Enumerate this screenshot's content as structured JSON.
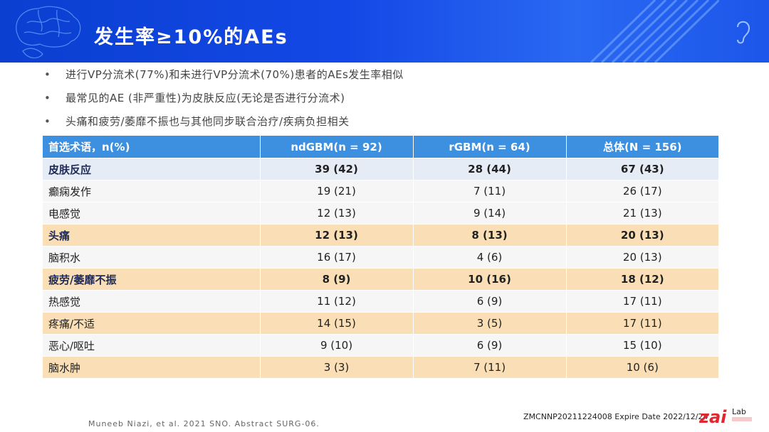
{
  "header": {
    "title": "发生率≥10%的AEs"
  },
  "bullets": [
    "进行VP分流术(77%)和未进行VP分流术(70%)患者的AEs发生率相似",
    "最常见的AE (非严重性)为皮肤反应(无论是否进行分流术)",
    "头痛和疲劳/萎靡不振也与其他同步联合治疗/疾病负担相关"
  ],
  "table": {
    "headers": [
      "首选术语，n(%)",
      "ndGBM(n = 92)",
      "rGBM(n = 64)",
      "总体(N = 156)"
    ],
    "rows": [
      {
        "cells": [
          "皮肤反应",
          "39 (42)",
          "28 (44)",
          "67 (43)"
        ],
        "style": "odd",
        "bold": true
      },
      {
        "cells": [
          "癫痫发作",
          "19 (21)",
          "7 (11)",
          "26 (17)"
        ],
        "style": "even",
        "bold": false
      },
      {
        "cells": [
          "电感觉",
          "12 (13)",
          "9 (14)",
          "21 (13)"
        ],
        "style": "even",
        "bold": false
      },
      {
        "cells": [
          "头痛",
          "12 (13)",
          "8 (13)",
          "20 (13)"
        ],
        "style": "hl",
        "bold": true
      },
      {
        "cells": [
          "脑积水",
          "16 (17)",
          "4 (6)",
          "20 (13)"
        ],
        "style": "even",
        "bold": false
      },
      {
        "cells": [
          "疲劳/萎靡不振",
          "8 (9)",
          "10 (16)",
          "18 (12)"
        ],
        "style": "hl",
        "bold": true
      },
      {
        "cells": [
          "热感觉",
          "11 (12)",
          "6 (9)",
          "17 (11)"
        ],
        "style": "even",
        "bold": false
      },
      {
        "cells": [
          "疼痛/不适",
          "14 (15)",
          "3 (5)",
          "17 (11)"
        ],
        "style": "hl",
        "bold": false
      },
      {
        "cells": [
          "恶心/呕吐",
          "9 (10)",
          "6 (9)",
          "15 (10)"
        ],
        "style": "even",
        "bold": false
      },
      {
        "cells": [
          "脑水肿",
          "3 (3)",
          "7 (11)",
          "10 (6)"
        ],
        "style": "hl",
        "bold": false
      }
    ]
  },
  "footer": {
    "citation": "Muneeb Niazi, et al. 2021 SNO. Abstract SURG-06.",
    "code": "ZMCNNP20211224008 Expire Date 2022/12/24",
    "logo_text": "zai",
    "logo_sub": "Lab",
    "logo_colors": {
      "red": "#e0262f",
      "dark": "#222222"
    }
  },
  "colors": {
    "banner": "#1448e6",
    "table_header": "#3d8fe0",
    "row_highlight": "#fadfb6",
    "row_odd": "#e6ecf6"
  }
}
